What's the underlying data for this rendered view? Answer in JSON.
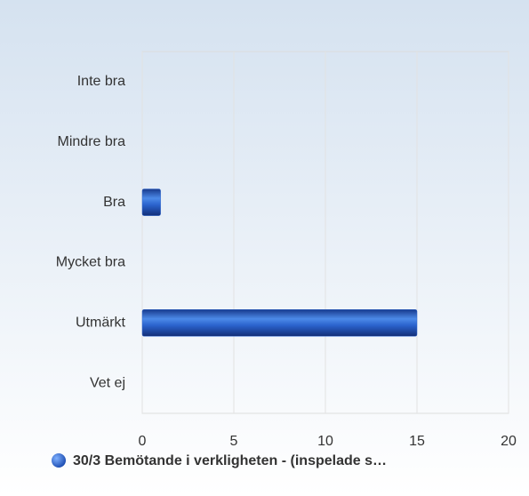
{
  "chart_data": {
    "type": "bar",
    "orientation": "horizontal",
    "categories": [
      "Inte bra",
      "Mindre bra",
      "Bra",
      "Mycket bra",
      "Utmärkt",
      "Vet ej"
    ],
    "series": [
      {
        "name": "30/3 Bemötande i verkligheten - (inspelade s…",
        "color": "#2a62cc",
        "values": [
          0,
          0,
          1,
          0,
          15,
          0
        ]
      }
    ],
    "xlim": [
      0,
      20
    ],
    "xticks": [
      0,
      5,
      10,
      15,
      20
    ],
    "grid": true
  }
}
